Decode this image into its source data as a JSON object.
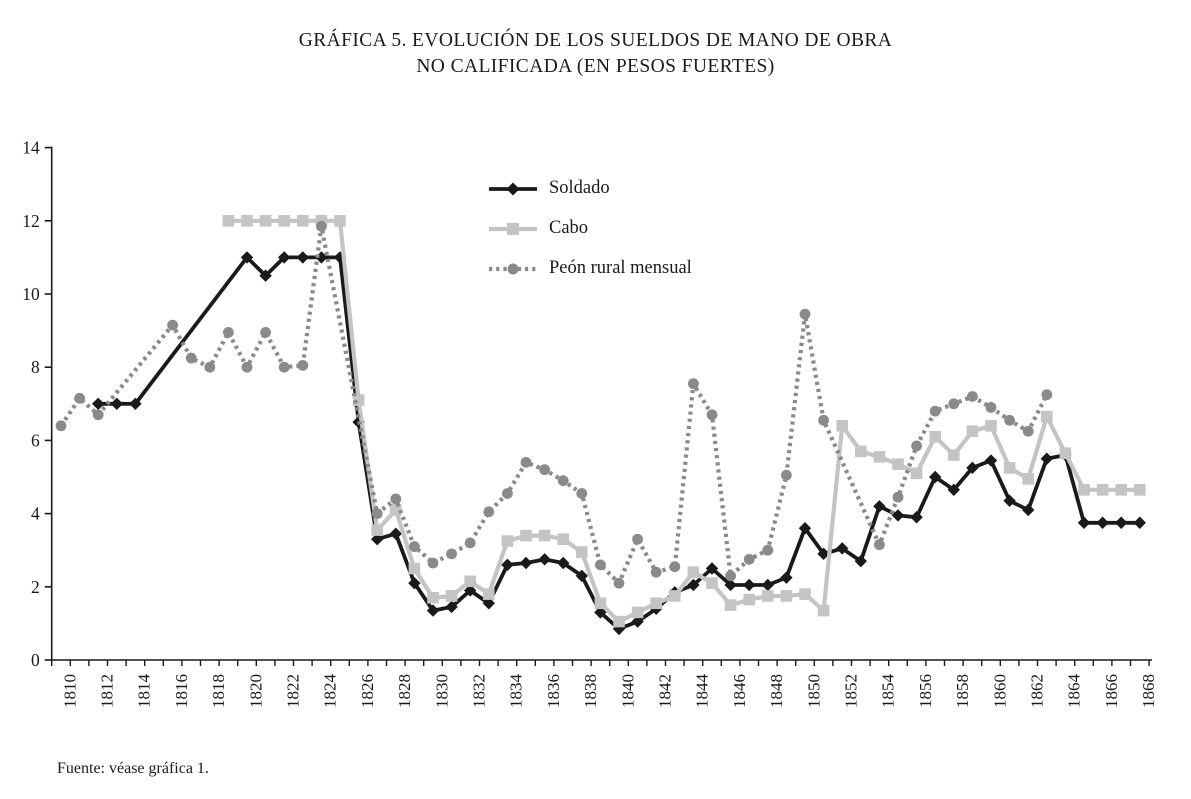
{
  "title": {
    "line1": "GRÁFICA 5. EVOLUCIÓN DE LOS SUELDOS DE MANO DE OBRA",
    "line2": "NO CALIFICADA (EN PESOS FUERTES)"
  },
  "source_note": "Fuente: véase gráfica 1.",
  "legend": {
    "items": [
      {
        "label": "Soldado"
      },
      {
        "label": "Cabo"
      },
      {
        "label": "Peón rural mensual"
      }
    ]
  },
  "chart_data": {
    "type": "line",
    "title": "GRÁFICA 5. EVOLUCIÓN DE LOS SUELDOS DE MANO DE OBRA NO CALIFICADA (EN PESOS FUERTES)",
    "xlabel": "",
    "ylabel": "",
    "ylim": [
      0,
      14
    ],
    "yticks": [
      0,
      2,
      4,
      6,
      8,
      10,
      12,
      14
    ],
    "grid": false,
    "legend_position": "upper-center",
    "x": [
      1810,
      1811,
      1812,
      1813,
      1814,
      1815,
      1816,
      1817,
      1818,
      1819,
      1820,
      1821,
      1822,
      1823,
      1824,
      1825,
      1826,
      1827,
      1828,
      1829,
      1830,
      1831,
      1832,
      1833,
      1834,
      1835,
      1836,
      1837,
      1838,
      1839,
      1840,
      1841,
      1842,
      1843,
      1844,
      1845,
      1846,
      1847,
      1848,
      1849,
      1850,
      1851,
      1852,
      1853,
      1854,
      1855,
      1856,
      1857,
      1858,
      1859,
      1860,
      1861,
      1862,
      1863,
      1864,
      1865,
      1866,
      1867,
      1868
    ],
    "x_tick_labels": [
      "1810",
      "1812",
      "1814",
      "1816",
      "1818",
      "1820",
      "1822",
      "1824",
      "1826",
      "1828",
      "1830",
      "1832",
      "1834",
      "1836",
      "1838",
      "1840",
      "1842",
      "1844",
      "1846",
      "1848",
      "1850",
      "1852",
      "1854",
      "1856",
      "1858",
      "1860",
      "1862",
      "1864",
      "1866",
      "1868"
    ],
    "series": [
      {
        "name": "Soldado",
        "color": "#1a1a1a",
        "marker": "diamond",
        "line": "solid",
        "values": [
          null,
          null,
          7,
          7,
          7,
          null,
          null,
          null,
          null,
          null,
          11,
          10.5,
          11,
          11,
          11,
          11,
          6.5,
          3.3,
          3.45,
          2.1,
          1.35,
          1.45,
          1.9,
          1.55,
          2.6,
          2.65,
          2.75,
          2.65,
          2.3,
          1.3,
          0.85,
          1.05,
          1.4,
          1.85,
          2.05,
          2.5,
          2.05,
          2.05,
          2.05,
          2.25,
          3.6,
          2.9,
          3.05,
          2.7,
          4.2,
          3.95,
          3.9,
          5.0,
          4.65,
          5.25,
          5.45,
          4.35,
          4.1,
          5.5,
          5.6,
          3.75,
          3.75,
          3.75,
          3.75
        ]
      },
      {
        "name": "Cabo",
        "color": "#c4c4c4",
        "marker": "square",
        "line": "solid",
        "values": [
          null,
          null,
          null,
          null,
          null,
          null,
          null,
          null,
          null,
          12,
          12,
          12,
          12,
          12,
          12,
          12,
          7.1,
          3.55,
          4.1,
          2.5,
          1.7,
          1.75,
          2.15,
          1.8,
          3.25,
          3.4,
          3.4,
          3.3,
          2.95,
          1.55,
          1.05,
          1.3,
          1.55,
          1.75,
          2.4,
          2.1,
          1.5,
          1.65,
          1.75,
          1.75,
          1.8,
          1.35,
          6.4,
          5.7,
          5.55,
          5.35,
          5.1,
          6.1,
          5.6,
          6.25,
          6.4,
          5.25,
          4.95,
          6.65,
          5.65,
          4.65,
          4.65,
          4.65,
          4.65
        ]
      },
      {
        "name": "Peón rural mensual",
        "color": "#8a8a8a",
        "marker": "circle",
        "line": "dotted",
        "values": [
          6.4,
          7.15,
          6.7,
          null,
          null,
          null,
          9.15,
          8.25,
          8.0,
          8.95,
          8.0,
          8.95,
          8.0,
          8.05,
          11.85,
          null,
          null,
          4.0,
          4.4,
          3.1,
          2.65,
          2.9,
          3.2,
          4.05,
          4.55,
          5.4,
          5.2,
          4.9,
          4.55,
          2.6,
          2.1,
          3.3,
          2.4,
          2.55,
          7.55,
          6.7,
          2.3,
          2.75,
          3.0,
          5.05,
          9.45,
          6.55,
          null,
          null,
          3.15,
          4.45,
          5.85,
          6.8,
          7.0,
          7.2,
          6.9,
          6.55,
          6.25,
          7.25,
          null,
          null,
          null,
          null,
          null
        ]
      }
    ]
  }
}
